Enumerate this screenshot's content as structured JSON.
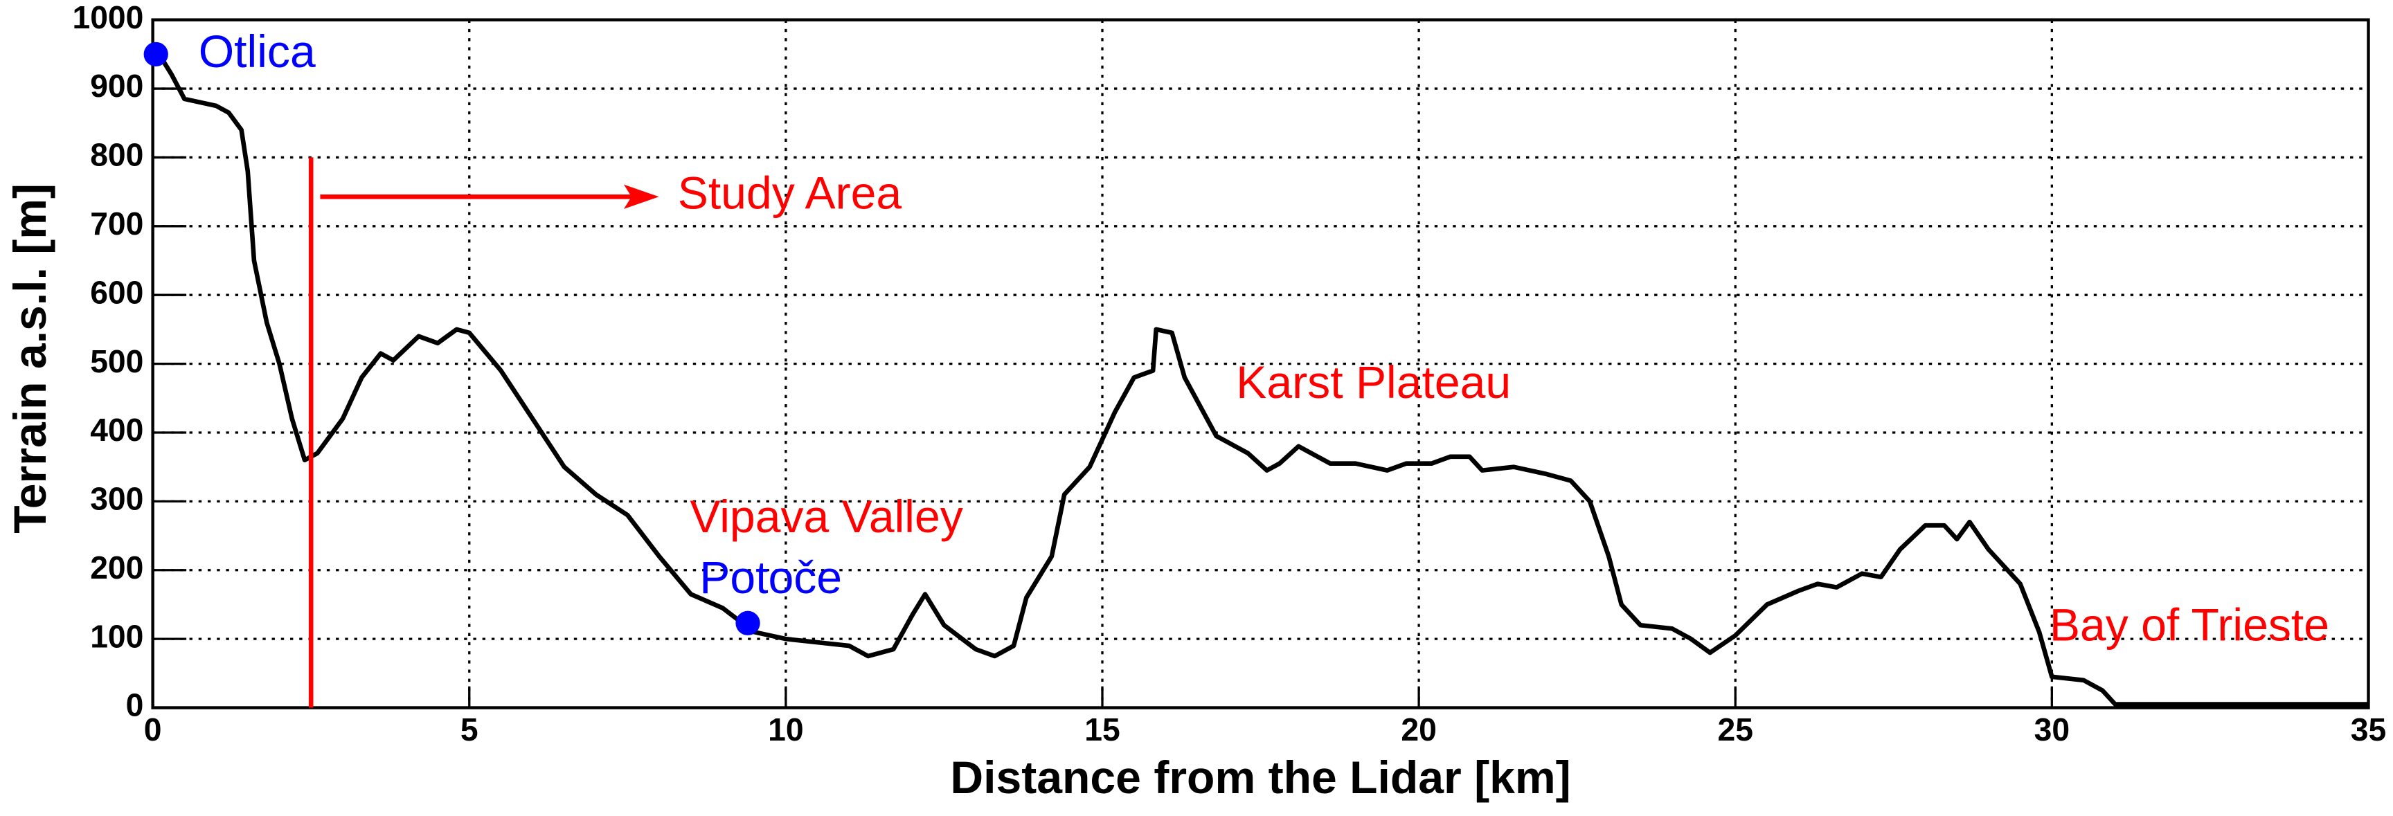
{
  "chart_data": {
    "type": "line",
    "xlabel": "Distance from the Lidar [km]",
    "ylabel": "Terrain a.s.l. [m]",
    "xlim": [
      0,
      35
    ],
    "xticks": [
      0,
      5,
      10,
      15,
      20,
      25,
      30,
      35
    ],
    "ylim": [
      0,
      1000
    ],
    "yticks": [
      0,
      100,
      200,
      300,
      400,
      500,
      600,
      700,
      800,
      900,
      1000
    ],
    "grid": true,
    "series": [
      {
        "color": "#000000",
        "x": [
          0.1,
          0.3,
          0.5,
          1.0,
          1.2,
          1.4,
          1.5,
          1.6,
          1.8,
          2.0,
          2.2,
          2.4,
          2.6,
          3.0,
          3.3,
          3.6,
          3.8,
          4.2,
          4.5,
          4.8,
          5.0,
          5.5,
          6.0,
          6.5,
          7.0,
          7.5,
          8.0,
          8.5,
          9.0,
          9.5,
          10.0,
          10.5,
          11.0,
          11.3,
          11.7,
          12.0,
          12.2,
          12.5,
          13.0,
          13.3,
          13.6,
          13.8,
          14.2,
          14.4,
          14.8,
          15.2,
          15.5,
          15.8,
          15.85,
          16.1,
          16.3,
          16.8,
          17.3,
          17.6,
          17.8,
          18.1,
          18.3,
          18.6,
          19.0,
          19.5,
          19.8,
          20.2,
          20.5,
          20.8,
          21.0,
          21.5,
          22.0,
          22.4,
          22.7,
          23.0,
          23.2,
          23.5,
          24.0,
          24.3,
          24.6,
          25.0,
          25.5,
          26.0,
          26.3,
          26.6,
          27.0,
          27.3,
          27.6,
          28.0,
          28.3,
          28.5,
          28.7,
          29.0,
          29.5,
          29.8,
          30.0,
          30.5,
          30.8,
          31.0,
          32.0,
          35.0
        ],
        "values": [
          950,
          920,
          885,
          875,
          865,
          840,
          780,
          650,
          560,
          500,
          420,
          360,
          370,
          420,
          480,
          515,
          505,
          540,
          530,
          550,
          545,
          490,
          420,
          350,
          310,
          280,
          220,
          165,
          145,
          110,
          100,
          95,
          90,
          75,
          85,
          135,
          165,
          120,
          85,
          75,
          90,
          160,
          220,
          310,
          350,
          430,
          480,
          490,
          550,
          545,
          480,
          395,
          370,
          345,
          355,
          380,
          370,
          355,
          355,
          345,
          355,
          355,
          365,
          365,
          345,
          350,
          340,
          330,
          300,
          220,
          150,
          120,
          115,
          100,
          80,
          105,
          150,
          170,
          180,
          175,
          195,
          190,
          230,
          265,
          265,
          245,
          270,
          230,
          180,
          110,
          45,
          40,
          25,
          5,
          5,
          5
        ]
      }
    ],
    "points": [
      {
        "label": "Otlica",
        "x": 0.05,
        "y": 950,
        "color": "#0000ff"
      },
      {
        "label": "Potoče",
        "x": 9.4,
        "y": 123,
        "color": "#0000ff"
      }
    ],
    "study_area": {
      "label": "Study Area",
      "x": 2.5,
      "ymax": 800,
      "color": "#ff0000"
    },
    "annotations": [
      {
        "text": "Vipava Valley",
        "color": "#ff0000"
      },
      {
        "text": "Karst Plateau",
        "color": "#ff0000"
      },
      {
        "text": "Bay of Trieste",
        "color": "#ff0000"
      }
    ]
  }
}
